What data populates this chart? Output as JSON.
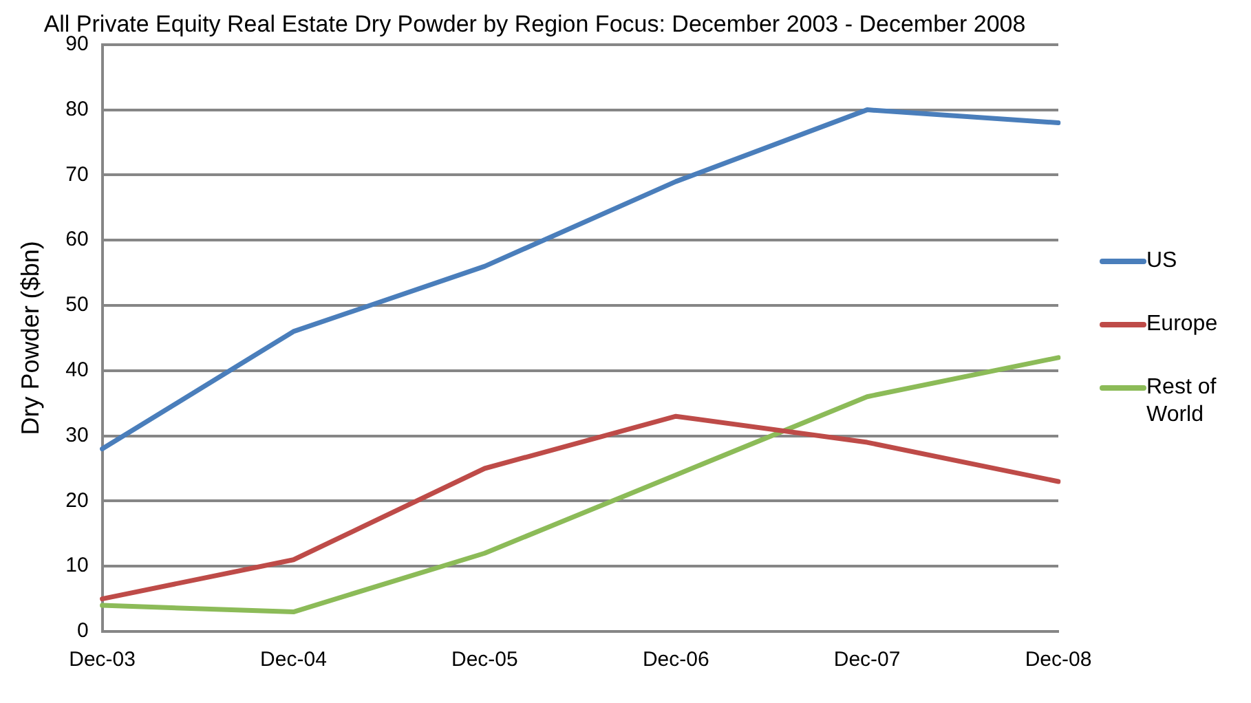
{
  "chart_data": {
    "type": "line",
    "title": "All Private Equity Real Estate Dry Powder by Region Focus: December 2003 - December 2008",
    "ylabel": "Dry Powder ($bn)",
    "categories": [
      "Dec-03",
      "Dec-04",
      "Dec-05",
      "Dec-06",
      "Dec-07",
      "Dec-08"
    ],
    "series": [
      {
        "name": "US",
        "color": "#4a7ebb",
        "values": [
          28,
          46,
          56,
          69,
          80,
          78
        ]
      },
      {
        "name": "Europe",
        "color": "#be4b48",
        "values": [
          5,
          11,
          25,
          33,
          29,
          23
        ]
      },
      {
        "name": "Rest of World",
        "color": "#8cbb58",
        "values": [
          4,
          3,
          12,
          24,
          36,
          42
        ]
      }
    ],
    "ylim": [
      0,
      90
    ],
    "yticks": [
      0,
      10,
      20,
      30,
      40,
      50,
      60,
      70,
      80,
      90
    ],
    "grid": "y",
    "legend": "right",
    "marker": "none",
    "line_style": "solid"
  }
}
